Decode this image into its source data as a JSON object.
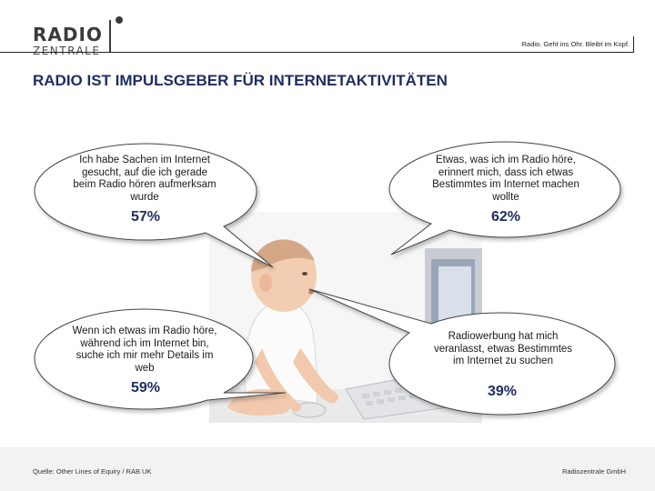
{
  "logo": {
    "word1": "RADIO",
    "word2": "ZENTRALE"
  },
  "header": {
    "slogan": "Radio. Geht ins Ohr. Bleibt im Kopf."
  },
  "title": "RADIO IST IMPULSGEBER FÜR INTERNETAKTIVITÄTEN",
  "bubbles": [
    {
      "text": "Ich habe Sachen im Internet gesucht, auf die ich gerade beim Radio hören aufmerksam wurde",
      "percent": "57%"
    },
    {
      "text": "Etwas, was ich im Radio höre, erinnert mich, dass ich etwas Bestimmtes im Internet machen wollte",
      "percent": "62%"
    },
    {
      "text": "Wenn ich etwas im Radio höre, während ich im Internet bin, suche ich mir mehr Details im web",
      "percent": "59%"
    },
    {
      "text": "Radiowerbung hat mich veranlasst, etwas Bestimmtes im Internet zu suchen",
      "percent": "39%"
    }
  ],
  "footer": {
    "source": "Quelle: Other Lines of Equiry / RAB UK",
    "company": "Radiozentrale GmbH"
  },
  "colors": {
    "title": "#1f2e62",
    "footer_bg": "#f2f2f2",
    "bubble_border": "#444444"
  },
  "icons": [
    "logo-dot-icon",
    "baby-with-computer-photo"
  ]
}
